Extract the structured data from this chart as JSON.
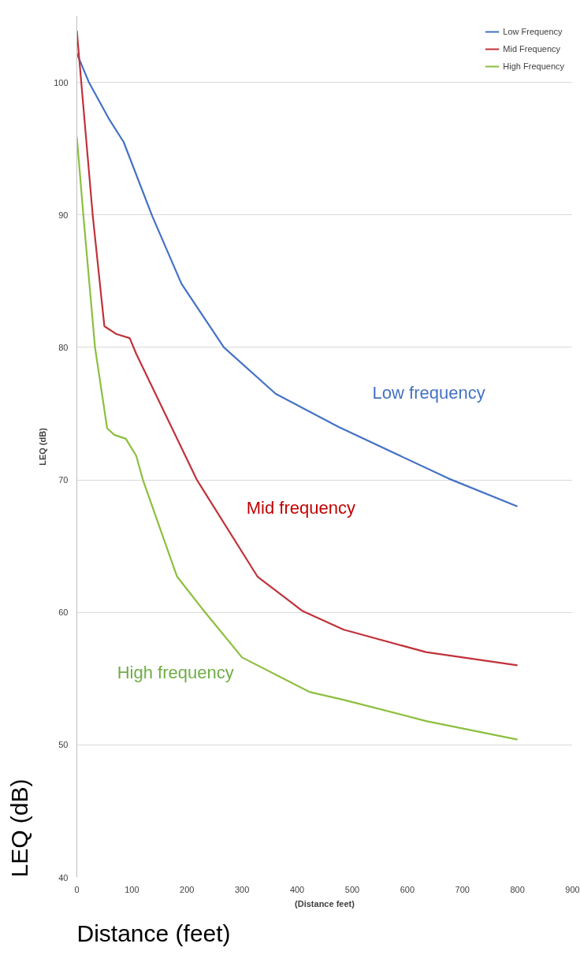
{
  "chart_data": {
    "type": "line",
    "xlabel": "(Distance feet)",
    "ylabel": "LEQ (dB)",
    "xlim": [
      0,
      900
    ],
    "xticks": [
      0,
      100,
      200,
      300,
      400,
      500,
      600,
      700,
      800,
      900
    ],
    "ylim": [
      40,
      105
    ],
    "yticks": [
      40,
      50,
      60,
      70,
      80,
      90,
      100
    ],
    "grid": "y",
    "legend": "top right",
    "marker": "none",
    "line_style": "solid",
    "series": [
      {
        "name": "Low Frequency",
        "color": "#4472c4",
        "x": [
          0,
          22,
          59,
          85,
          137,
          190,
          267,
          361,
          475,
          675,
          800
        ],
        "values": [
          102.2,
          100,
          97.2,
          95.5,
          89.9,
          84.8,
          80,
          76.5,
          74,
          70.1,
          68
        ]
      },
      {
        "name": "Mid Frequency",
        "color": "#c0323a",
        "x": [
          0,
          29,
          50,
          72,
          96,
          108,
          218,
          328,
          410,
          484,
          634,
          800
        ],
        "values": [
          103.9,
          89.9,
          81.6,
          81,
          80.7,
          79.5,
          70,
          62.7,
          60.1,
          58.7,
          57,
          56
        ]
      },
      {
        "name": "High Frequency",
        "color": "#8cbf3f",
        "x": [
          0,
          12,
          33,
          55,
          68,
          89,
          108,
          120,
          182,
          231,
          300,
          422,
          484,
          634,
          800
        ],
        "values": [
          95.9,
          89.9,
          80,
          73.9,
          73.4,
          73.1,
          71.8,
          70,
          62.7,
          60.1,
          56.6,
          54,
          53.4,
          51.8,
          50.4
        ]
      }
    ],
    "annotations": [
      "Low frequency",
      "Mid frequency",
      "High frequency",
      "Distance (feet)",
      "LEQ (dB)"
    ]
  }
}
